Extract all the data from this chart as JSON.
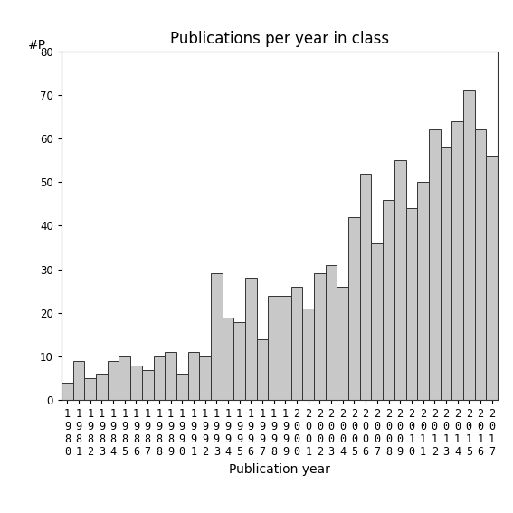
{
  "years": [
    "1980",
    "1981",
    "1982",
    "1983",
    "1984",
    "1985",
    "1986",
    "1987",
    "1988",
    "1989",
    "1990",
    "1991",
    "1992",
    "1993",
    "1994",
    "1995",
    "1996",
    "1997",
    "1998",
    "1999",
    "2000",
    "2001",
    "2002",
    "2003",
    "2004",
    "2005",
    "2006",
    "2007",
    "2008",
    "2009",
    "2010",
    "2011",
    "2012",
    "2013",
    "2014",
    "2015",
    "2016",
    "2017"
  ],
  "values": [
    4,
    9,
    5,
    6,
    9,
    10,
    8,
    7,
    10,
    11,
    6,
    11,
    10,
    29,
    19,
    18,
    28,
    14,
    24,
    24,
    26,
    21,
    29,
    31,
    26,
    42,
    52,
    36,
    46,
    55,
    44,
    50,
    62,
    58,
    64,
    71,
    62,
    56
  ],
  "bar_color": "#c8c8c8",
  "bar_edgecolor": "#333333",
  "title": "Publications per year in class",
  "xlabel": "Publication year",
  "ylabel": "#P",
  "ylim": [
    0,
    80
  ],
  "yticks": [
    0,
    10,
    20,
    30,
    40,
    50,
    60,
    70,
    80
  ],
  "background_color": "#ffffff",
  "title_fontsize": 12,
  "label_fontsize": 10,
  "tick_fontsize": 8.5
}
